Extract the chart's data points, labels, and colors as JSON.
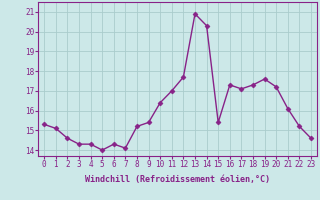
{
  "x": [
    0,
    1,
    2,
    3,
    4,
    5,
    6,
    7,
    8,
    9,
    10,
    11,
    12,
    13,
    14,
    15,
    16,
    17,
    18,
    19,
    20,
    21,
    22,
    23
  ],
  "y": [
    15.3,
    15.1,
    14.6,
    14.3,
    14.3,
    14.0,
    14.3,
    14.1,
    15.2,
    15.4,
    16.4,
    17.0,
    17.7,
    20.9,
    20.3,
    15.4,
    17.3,
    17.1,
    17.3,
    17.6,
    17.2,
    16.1,
    15.2,
    14.6
  ],
  "line_color": "#882288",
  "marker": "D",
  "marker_size": 2.5,
  "background_color": "#cce8e8",
  "grid_color": "#aacccc",
  "xlabel": "Windchill (Refroidissement éolien,°C)",
  "ylabel_ticks": [
    14,
    15,
    16,
    17,
    18,
    19,
    20,
    21
  ],
  "xlim": [
    -0.5,
    23.5
  ],
  "ylim": [
    13.7,
    21.5
  ],
  "tick_color": "#882288",
  "line_width": 1.0,
  "tick_fontsize": 5.5,
  "xlabel_fontsize": 6.0
}
